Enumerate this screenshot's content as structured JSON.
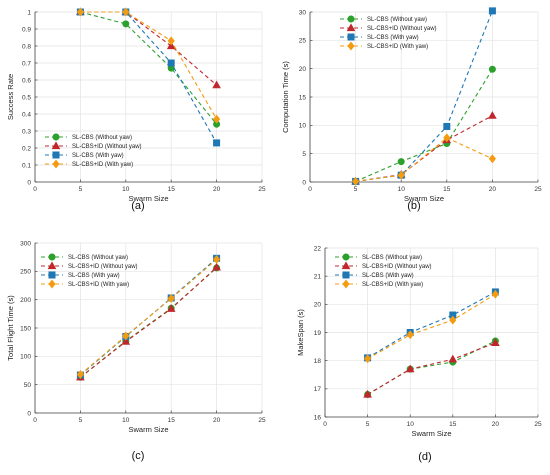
{
  "figure": {
    "panel_captions": [
      "(a)",
      "(b)",
      "(c)",
      "(d)"
    ]
  },
  "chart_data": [
    {
      "type": "line",
      "panel": "(a)",
      "xlabel": "Swarm Size",
      "ylabel": "Success Rate",
      "xlim": [
        0,
        25
      ],
      "ylim": [
        0,
        1
      ],
      "xticks": [
        0,
        5,
        10,
        15,
        20,
        25
      ],
      "yticks": [
        0,
        0.1,
        0.2,
        0.3,
        0.4,
        0.5,
        0.6,
        0.7,
        0.8,
        0.9,
        1
      ],
      "ytick_labels": [
        "0",
        "0.1",
        "0.2",
        "0.3",
        "0.4",
        "0.5",
        "0.6",
        "0.7",
        "0.8",
        "0.9",
        "1"
      ],
      "grid": true,
      "legend_position": "lower-left",
      "x": [
        5,
        10,
        15,
        20
      ],
      "series": [
        {
          "name": "SL-CBS (Without yaw)",
          "color": "#2ca02c",
          "marker": "circle",
          "values": [
            1.0,
            0.93,
            0.67,
            0.34
          ]
        },
        {
          "name": "SL-CBS+ID (Without yaw)",
          "color": "#c0272d",
          "marker": "triangle",
          "values": [
            1.0,
            1.0,
            0.8,
            0.57
          ]
        },
        {
          "name": "SL-CBS (With yaw)",
          "color": "#1f77b4",
          "marker": "square",
          "values": [
            1.0,
            1.0,
            0.7,
            0.23
          ]
        },
        {
          "name": "SL-CBS+ID (With yaw)",
          "color": "#f39c12",
          "marker": "diamond",
          "values": [
            1.0,
            1.0,
            0.83,
            0.37
          ]
        }
      ]
    },
    {
      "type": "line",
      "panel": "(b)",
      "xlabel": "Swarm Size",
      "ylabel": "Computation Time (s)",
      "xlim": [
        0,
        25
      ],
      "ylim": [
        0,
        30
      ],
      "xticks": [
        0,
        5,
        10,
        15,
        20,
        25
      ],
      "yticks": [
        0,
        5,
        10,
        15,
        20,
        25,
        30
      ],
      "ytick_labels": [
        "0",
        "5",
        "10",
        "15",
        "20",
        "25",
        "30"
      ],
      "grid": true,
      "legend_position": "upper-left",
      "x": [
        5,
        10,
        15,
        20
      ],
      "series": [
        {
          "name": "SL-CBS (Without yaw)",
          "color": "#2ca02c",
          "marker": "circle",
          "values": [
            0.1,
            3.6,
            6.8,
            19.9
          ]
        },
        {
          "name": "SL-CBS+ID (Without yaw)",
          "color": "#c0272d",
          "marker": "triangle",
          "values": [
            0.1,
            1.3,
            7.4,
            11.7
          ]
        },
        {
          "name": "SL-CBS (With yaw)",
          "color": "#1f77b4",
          "marker": "square",
          "values": [
            0.1,
            1.2,
            9.8,
            30.2
          ]
        },
        {
          "name": "SL-CBS+ID (With yaw)",
          "color": "#f39c12",
          "marker": "diamond",
          "values": [
            0.1,
            1.2,
            7.8,
            4.1
          ]
        }
      ]
    },
    {
      "type": "line",
      "panel": "(c)",
      "xlabel": "Swarm Size",
      "ylabel": "Total Flight Time (s)",
      "xlim": [
        0,
        25
      ],
      "ylim": [
        0,
        300
      ],
      "xticks": [
        0,
        5,
        10,
        15,
        20,
        25
      ],
      "yticks": [
        0,
        50,
        100,
        150,
        200,
        250,
        300
      ],
      "ytick_labels": [
        "0",
        "50",
        "100",
        "150",
        "200",
        "250",
        "300"
      ],
      "grid": true,
      "legend_position": "upper-left",
      "x": [
        5,
        10,
        15,
        20
      ],
      "series": [
        {
          "name": "SL-CBS (Without yaw)",
          "color": "#2ca02c",
          "marker": "circle",
          "values": [
            63,
            127,
            185,
            256
          ]
        },
        {
          "name": "SL-CBS+ID (Without yaw)",
          "color": "#c0272d",
          "marker": "triangle",
          "values": [
            63,
            126,
            184,
            257
          ]
        },
        {
          "name": "SL-CBS (With yaw)",
          "color": "#1f77b4",
          "marker": "square",
          "values": [
            67,
            135,
            203,
            273
          ]
        },
        {
          "name": "SL-CBS+ID (With yaw)",
          "color": "#f39c12",
          "marker": "diamond",
          "values": [
            68,
            136,
            202,
            271
          ]
        }
      ]
    },
    {
      "type": "line",
      "panel": "(d)",
      "xlabel": "Swarm Size",
      "ylabel": "MakeSpan (s)",
      "xlim": [
        0,
        25
      ],
      "ylim": [
        16,
        22
      ],
      "xticks": [
        0,
        5,
        10,
        15,
        20,
        25
      ],
      "yticks": [
        16,
        17,
        18,
        19,
        20,
        21,
        22
      ],
      "ytick_labels": [
        "16",
        "17",
        "18",
        "19",
        "20",
        "21",
        "22"
      ],
      "grid": true,
      "legend_position": "upper-left",
      "x": [
        5,
        10,
        15,
        20
      ],
      "series": [
        {
          "name": "SL-CBS (Without yaw)",
          "color": "#2ca02c",
          "marker": "circle",
          "values": [
            16.8,
            17.7,
            17.95,
            18.7
          ]
        },
        {
          "name": "SL-CBS+ID (Without yaw)",
          "color": "#c0272d",
          "marker": "triangle",
          "values": [
            16.8,
            17.7,
            18.05,
            18.63
          ]
        },
        {
          "name": "SL-CBS (With yaw)",
          "color": "#1f77b4",
          "marker": "square",
          "values": [
            18.1,
            19.0,
            19.62,
            20.44
          ]
        },
        {
          "name": "SL-CBS+ID (With yaw)",
          "color": "#f39c12",
          "marker": "diamond",
          "values": [
            18.07,
            18.92,
            19.44,
            20.36
          ]
        }
      ]
    }
  ]
}
